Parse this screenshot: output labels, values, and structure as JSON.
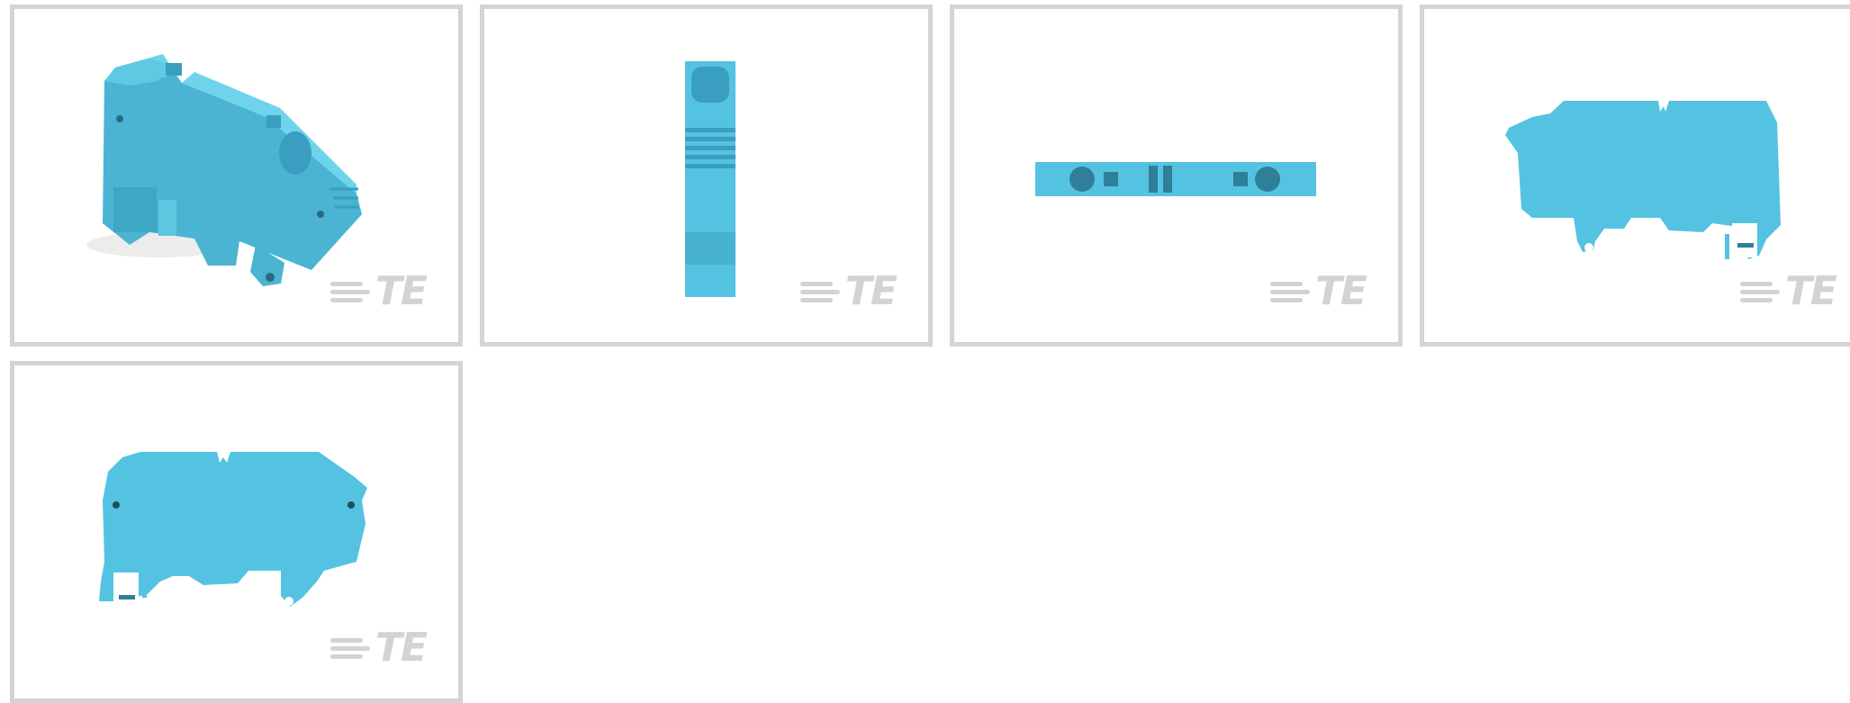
{
  "gallery": {
    "brand_mark": "TE",
    "product_color": "#54c3e1",
    "tiles": [
      {
        "view": "isometric"
      },
      {
        "view": "end"
      },
      {
        "view": "top"
      },
      {
        "view": "side-right"
      },
      {
        "view": "side-left"
      }
    ]
  }
}
